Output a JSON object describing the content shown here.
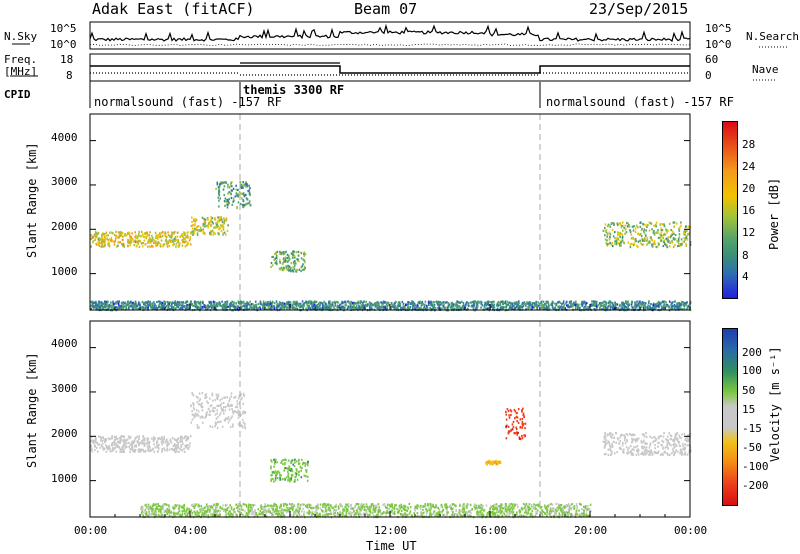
{
  "header": {
    "site": "Adak East (fitACF)",
    "beam": "Beam 07",
    "date": "23/Sep/2015"
  },
  "top_panels": {
    "nsky_label": "N.Sky",
    "nsky_ticks": [
      "10^5",
      "10^0"
    ],
    "nsearch_label": "N.Search",
    "nsearch_ticks": [
      "10^5",
      "10^0"
    ],
    "freq_label_1": "Freq.",
    "freq_label_2": "[MHz]",
    "freq_ticks": [
      "18",
      "8"
    ],
    "nave_label": "Nave",
    "nave_ticks": [
      "60",
      "0"
    ],
    "cpid_label": "CPID",
    "cpid_segments": [
      {
        "label": "normalsound (fast) -157 RF",
        "start_hour": 0,
        "end_hour": 6
      },
      {
        "label": "themis 3300 RF",
        "start_hour": 6,
        "end_hour": 18
      },
      {
        "label": "normalsound (fast) -157 RF",
        "start_hour": 18,
        "end_hour": 24
      }
    ]
  },
  "power_panel": {
    "ylabel": "Slant Range [km]",
    "yticks": [
      "4000",
      "3000",
      "2000",
      "1000"
    ],
    "colorbar_label": "Power [dB]",
    "colorbar_ticks": [
      "28",
      "24",
      "20",
      "16",
      "12",
      "8",
      "4"
    ],
    "colors": [
      "#2020e0",
      "#2f6fb0",
      "#3a8f78",
      "#59a46a",
      "#9fc33a",
      "#f2c200",
      "#f39b1d",
      "#e9511a",
      "#d90d12"
    ]
  },
  "velocity_panel": {
    "ylabel": "Slant Range [km]",
    "yticks": [
      "4000",
      "3000",
      "2000",
      "1000"
    ],
    "colorbar_label": "Velocity [m s⁻¹]",
    "colorbar_ticks": [
      "200",
      "100",
      "50",
      "15",
      "-15",
      "-50",
      "-100",
      "-200"
    ],
    "colors": [
      "#1f3fae",
      "#2b6aa8",
      "#2f8f5f",
      "#7dc842",
      "#c8c8c8",
      "#f0c21a",
      "#f58a14",
      "#ec3e1c",
      "#d80f10"
    ]
  },
  "x_axis": {
    "title": "Time UT",
    "tick_labels": [
      "00:00",
      "04:00",
      "08:00",
      "12:00",
      "16:00",
      "20:00",
      "00:00"
    ]
  },
  "chart_data": {
    "type": "heatmap",
    "x_range_hours": [
      0,
      24
    ],
    "y_range_km": [
      180,
      4600
    ],
    "mode_change_hours": [
      6,
      18
    ],
    "power_regions": [
      {
        "t_start": 0.0,
        "t_end": 4.0,
        "range_center_km": 1800,
        "range_half_width_km": 170,
        "power_db": 18
      },
      {
        "t_start": 4.0,
        "t_end": 5.5,
        "range_center_km": 2100,
        "range_half_width_km": 200,
        "power_db": 16
      },
      {
        "t_start": 5.0,
        "t_end": 6.4,
        "range_center_km": 2800,
        "range_half_width_km": 300,
        "power_db": 10
      },
      {
        "t_start": 7.2,
        "t_end": 8.6,
        "range_center_km": 1300,
        "range_half_width_km": 230,
        "power_db": 12
      },
      {
        "t_start": 20.5,
        "t_end": 24.0,
        "range_center_km": 1900,
        "range_half_width_km": 280,
        "power_db": 14
      },
      {
        "t_start": 0.0,
        "t_end": 24.0,
        "range_center_km": 300,
        "range_half_width_km": 100,
        "power_db": 8
      }
    ],
    "velocity_regions": [
      {
        "t_start": 0.0,
        "t_end": 4.0,
        "range_center_km": 1850,
        "range_half_width_km": 180,
        "velocity_ms": 0
      },
      {
        "t_start": 4.0,
        "t_end": 6.2,
        "range_center_km": 2600,
        "range_half_width_km": 400,
        "velocity_ms": 0
      },
      {
        "t_start": 7.2,
        "t_end": 8.7,
        "range_center_km": 1250,
        "range_half_width_km": 250,
        "velocity_ms": 80
      },
      {
        "t_start": 16.6,
        "t_end": 17.4,
        "range_center_km": 2300,
        "range_half_width_km": 350,
        "velocity_ms": -200
      },
      {
        "t_start": 15.8,
        "t_end": 16.4,
        "range_center_km": 1430,
        "range_half_width_km": 40,
        "velocity_ms": -80
      },
      {
        "t_start": 20.5,
        "t_end": 24.0,
        "range_center_km": 1850,
        "range_half_width_km": 250,
        "velocity_ms": 0
      },
      {
        "t_start": 2.0,
        "t_end": 20.0,
        "range_center_km": 350,
        "range_half_width_km": 150,
        "velocity_ms": 40
      }
    ]
  }
}
